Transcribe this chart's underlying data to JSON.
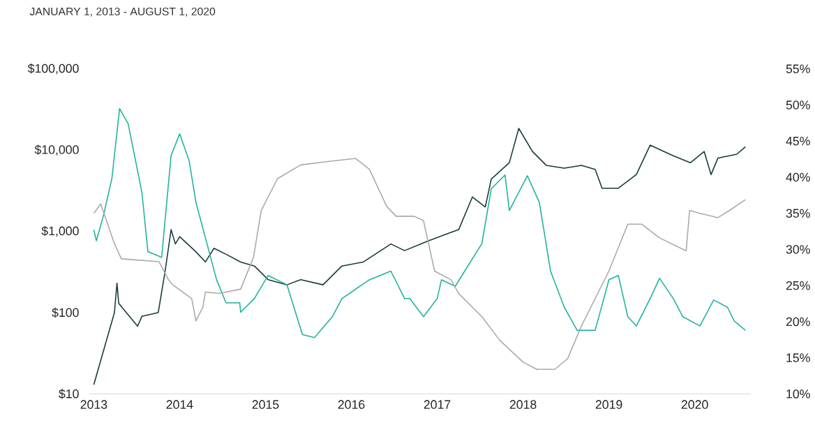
{
  "chart_data": {
    "type": "line",
    "subtitle": "JANUARY 1, 2013 - AUGUST 1, 2020",
    "xlim": [
      2012.95,
      2020.65
    ],
    "xticks": [
      2013,
      2014,
      2015,
      2016,
      2017,
      2018,
      2019,
      2020
    ],
    "log": "y",
    "ylim": [
      10,
      100000
    ],
    "yticks": [
      {
        "value": 10,
        "label": "$10"
      },
      {
        "value": 100,
        "label": "$100"
      },
      {
        "value": 1000,
        "label": "$1,000"
      },
      {
        "value": 10000,
        "label": "$10,000"
      },
      {
        "value": 100000,
        "label": "$100,000"
      }
    ],
    "y2lim": [
      10,
      55
    ],
    "y2ticks": [
      {
        "value": 10,
        "label": "10%"
      },
      {
        "value": 15,
        "label": "15%"
      },
      {
        "value": 20,
        "label": "20%"
      },
      {
        "value": 25,
        "label": "25%"
      },
      {
        "value": 30,
        "label": "30%"
      },
      {
        "value": 35,
        "label": "35%"
      },
      {
        "value": 40,
        "label": "40%"
      },
      {
        "value": 45,
        "label": "45%"
      },
      {
        "value": 50,
        "label": "50%"
      },
      {
        "value": 55,
        "label": "55%"
      }
    ],
    "series": [
      {
        "color": "#17393a",
        "x": [
          2013.0,
          2013.24,
          2013.27,
          2013.29,
          2013.51,
          2013.56,
          2013.75,
          2013.83,
          2013.9,
          2013.95,
          2014.0,
          2014.19,
          2014.3,
          2014.4,
          2014.56,
          2014.71,
          2014.87,
          2015.03,
          2015.25,
          2015.41,
          2015.67,
          2015.89,
          2016.14,
          2016.46,
          2016.62,
          2016.89,
          2017.1,
          2017.25,
          2017.41,
          2017.56,
          2017.63,
          2017.84,
          2017.95,
          2018.11,
          2018.27,
          2018.48,
          2018.68,
          2018.84,
          2018.92,
          2019.11,
          2019.32,
          2019.48,
          2019.75,
          2019.95,
          2020.11,
          2020.19,
          2020.27,
          2020.49,
          2020.59
        ],
        "values": [
          13,
          100,
          230,
          130,
          68,
          90,
          100,
          320,
          1050,
          700,
          860,
          560,
          420,
          620,
          510,
          420,
          375,
          255,
          220,
          255,
          220,
          375,
          420,
          700,
          580,
          760,
          920,
          1050,
          2650,
          2000,
          4400,
          7000,
          18500,
          9600,
          6500,
          6000,
          6500,
          5800,
          3400,
          3400,
          5000,
          11500,
          8500,
          7000,
          9600,
          5000,
          8000,
          8900,
          11000
        ]
      },
      {
        "color": "#1fb29e",
        "axis": "y2",
        "x": [
          2013.0,
          2013.03,
          2013.11,
          2013.21,
          2013.3,
          2013.4,
          2013.56,
          2013.63,
          2013.79,
          2013.9,
          2014.0,
          2014.11,
          2014.19,
          2014.3,
          2014.43,
          2014.54,
          2014.7,
          2014.71,
          2014.87,
          2015.03,
          2015.25,
          2015.43,
          2015.57,
          2015.78,
          2015.89,
          2016.21,
          2016.46,
          2016.62,
          2016.68,
          2016.84,
          2017.0,
          2017.05,
          2017.21,
          2017.32,
          2017.52,
          2017.63,
          2017.79,
          2017.84,
          2018.05,
          2018.19,
          2018.32,
          2018.48,
          2018.63,
          2018.84,
          2019.0,
          2019.11,
          2019.22,
          2019.32,
          2019.48,
          2019.59,
          2019.75,
          2019.86,
          2020.06,
          2020.22,
          2020.38,
          2020.46,
          2020.59
        ],
        "values": [
          32.7,
          31.2,
          34.6,
          39.8,
          49.5,
          47.4,
          37.9,
          29.7,
          28.9,
          43.0,
          46.0,
          42.3,
          36.5,
          31.6,
          25.8,
          22.6,
          22.6,
          21.3,
          23.2,
          26.4,
          25.1,
          18.2,
          17.8,
          20.7,
          23.2,
          25.8,
          27.0,
          23.2,
          23.2,
          20.7,
          23.2,
          25.8,
          24.9,
          27.0,
          30.8,
          38.4,
          40.3,
          35.4,
          40.2,
          36.5,
          27.0,
          22.0,
          18.8,
          18.8,
          25.8,
          26.4,
          20.7,
          19.4,
          23.2,
          26.0,
          23.2,
          20.7,
          19.4,
          23.0,
          22.0,
          20.1,
          18.8
        ]
      },
      {
        "color": "#a9a9a9",
        "axis": "y2",
        "x": [
          2013.0,
          2013.08,
          2013.24,
          2013.32,
          2013.76,
          2013.87,
          2013.92,
          2014.14,
          2014.19,
          2014.27,
          2014.3,
          2014.46,
          2014.71,
          2014.86,
          2014.95,
          2015.14,
          2015.41,
          2015.67,
          2016.05,
          2016.21,
          2016.41,
          2016.52,
          2016.73,
          2016.84,
          2016.97,
          2017.16,
          2017.25,
          2017.52,
          2017.73,
          2018.0,
          2018.16,
          2018.37,
          2018.52,
          2018.68,
          2019.0,
          2019.22,
          2019.38,
          2019.59,
          2019.9,
          2019.94,
          2020.06,
          2020.27,
          2020.43,
          2020.59
        ],
        "values": [
          35.0,
          36.3,
          30.8,
          28.7,
          28.3,
          25.8,
          25.1,
          23.2,
          20.1,
          22.0,
          24.1,
          23.9,
          24.5,
          28.9,
          35.4,
          39.8,
          41.7,
          42.1,
          42.6,
          41.1,
          36.0,
          34.6,
          34.6,
          34.0,
          27.0,
          25.8,
          23.9,
          20.7,
          17.4,
          14.4,
          13.4,
          13.4,
          14.9,
          19.4,
          27.0,
          33.5,
          33.5,
          31.6,
          29.8,
          35.4,
          35.0,
          34.4,
          35.6,
          36.9
        ]
      }
    ]
  }
}
